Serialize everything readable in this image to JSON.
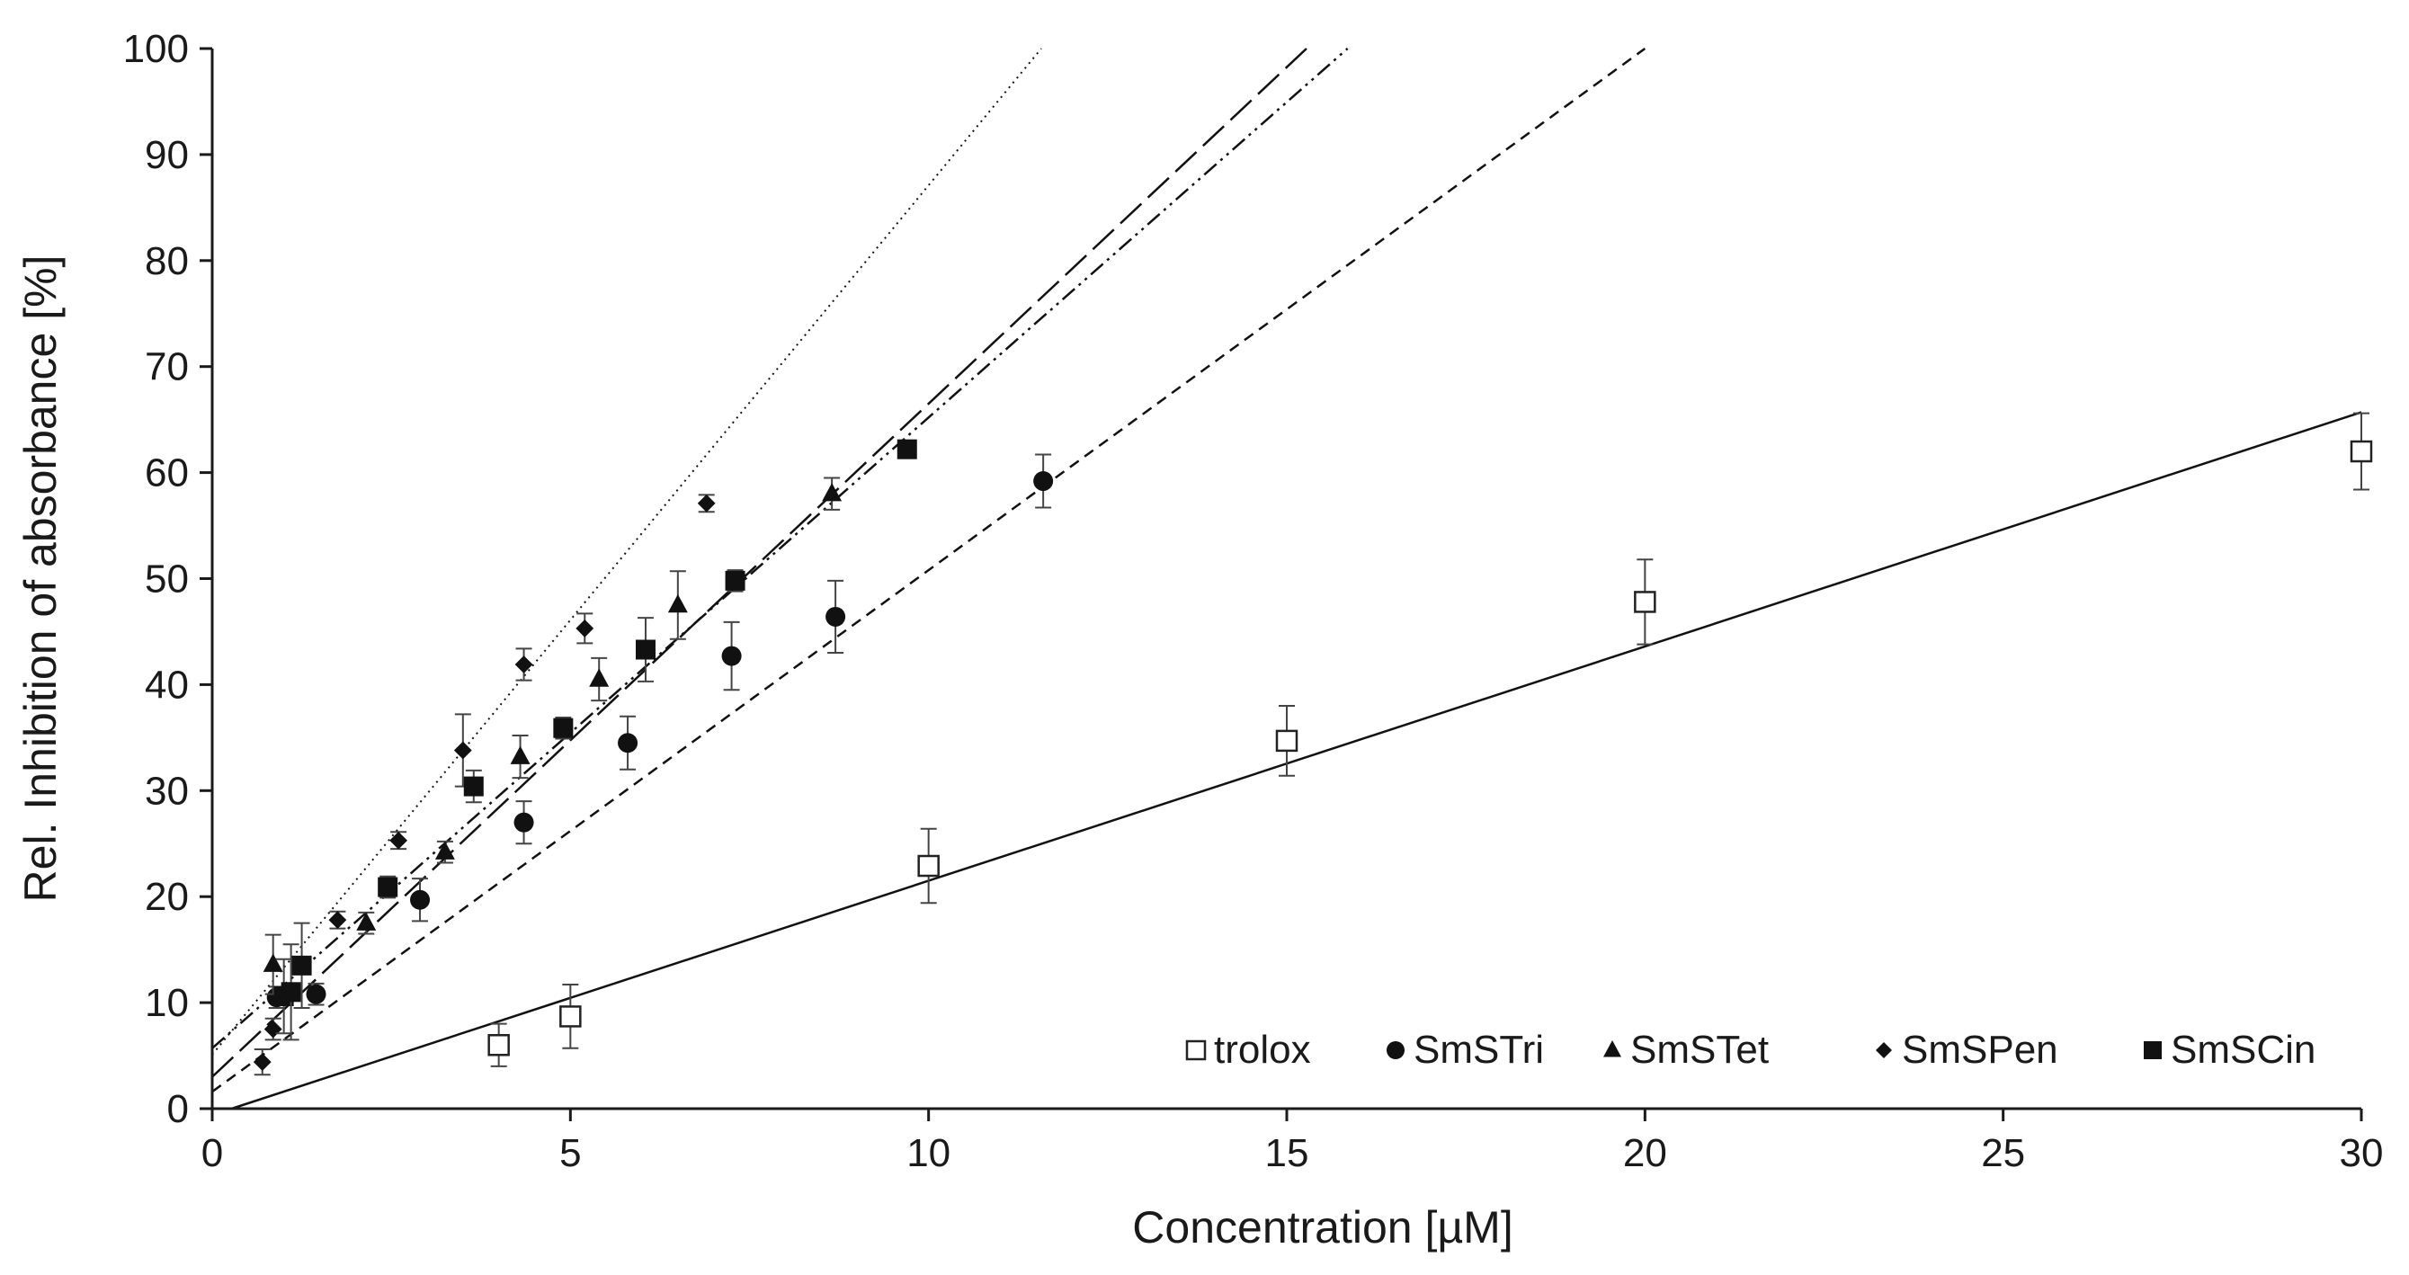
{
  "chart_data": {
    "type": "scatter",
    "title": "",
    "xlabel": "Concentration [µM]",
    "ylabel": "Rel. Inhibition of absorbance [%]",
    "xlim": [
      0,
      30
    ],
    "ylim": [
      0,
      100
    ],
    "xticks": [
      "0",
      "5",
      "10",
      "15",
      "20",
      "25",
      "30"
    ],
    "yticks": [
      "0",
      "10",
      "20",
      "30",
      "40",
      "50",
      "60",
      "70",
      "80",
      "90",
      "100"
    ],
    "grid": false,
    "legend_position": "bottom-right",
    "series": [
      {
        "name": "trolox",
        "marker": "open-square",
        "line_style": "solid",
        "color": "#111111",
        "points": [
          {
            "x": 4.0,
            "y": 6.0,
            "err": 2.0
          },
          {
            "x": 5.0,
            "y": 8.7,
            "err": 3.0
          },
          {
            "x": 10.0,
            "y": 22.9,
            "err": 3.5
          },
          {
            "x": 15.0,
            "y": 34.7,
            "err": 3.3
          },
          {
            "x": 20.0,
            "y": 47.8,
            "err": 4.0
          },
          {
            "x": 30.0,
            "y": 62.0,
            "err": 3.6
          }
        ],
        "trendline": {
          "slope": 2.21,
          "intercept": -0.6
        }
      },
      {
        "name": "SmSTri",
        "marker": "filled-circle",
        "line_style": "short-dash",
        "color": "#111111",
        "points": [
          {
            "x": 0.9,
            "y": 10.5,
            "err": 1.0
          },
          {
            "x": 1.45,
            "y": 10.8,
            "err": 1.0
          },
          {
            "x": 2.9,
            "y": 19.7,
            "err": 2.0
          },
          {
            "x": 4.35,
            "y": 27.0,
            "err": 2.0
          },
          {
            "x": 5.8,
            "y": 34.5,
            "err": 2.5
          },
          {
            "x": 7.25,
            "y": 42.7,
            "err": 3.2
          },
          {
            "x": 8.7,
            "y": 46.4,
            "err": 3.4
          },
          {
            "x": 11.6,
            "y": 59.2,
            "err": 2.5
          }
        ],
        "trendline": {
          "slope": 4.92,
          "intercept": 1.6
        }
      },
      {
        "name": "SmSTet",
        "marker": "filled-triangle",
        "line_style": "dash-dot-dot",
        "color": "#111111",
        "points": [
          {
            "x": 0.85,
            "y": 13.6,
            "err": 2.8
          },
          {
            "x": 2.15,
            "y": 17.5,
            "err": 1.0
          },
          {
            "x": 3.25,
            "y": 24.2,
            "err": 1.0
          },
          {
            "x": 4.3,
            "y": 33.2,
            "err": 2.0
          },
          {
            "x": 5.4,
            "y": 40.5,
            "err": 2.0
          },
          {
            "x": 6.5,
            "y": 47.5,
            "err": 3.2
          },
          {
            "x": 8.65,
            "y": 58.0,
            "err": 1.5
          }
        ],
        "trendline": {
          "slope": 5.95,
          "intercept": 5.7
        }
      },
      {
        "name": "SmSPen",
        "marker": "filled-diamond",
        "line_style": "dotted",
        "color": "#111111",
        "points": [
          {
            "x": 0.7,
            "y": 4.4,
            "err": 1.2
          },
          {
            "x": 0.85,
            "y": 7.5,
            "err": 1.0
          },
          {
            "x": 1.75,
            "y": 17.8,
            "err": 0.8
          },
          {
            "x": 2.6,
            "y": 25.3,
            "err": 0.8
          },
          {
            "x": 3.5,
            "y": 33.8,
            "err": 3.4
          },
          {
            "x": 4.35,
            "y": 41.9,
            "err": 1.5
          },
          {
            "x": 5.2,
            "y": 45.3,
            "err": 1.4
          },
          {
            "x": 6.9,
            "y": 57.1,
            "err": 0.8
          }
        ],
        "trendline": {
          "slope": 8.2,
          "intercept": 5.1
        }
      },
      {
        "name": "SmSCin",
        "marker": "filled-square",
        "line_style": "long-dash",
        "color": "#111111",
        "points": [
          {
            "x": 1.0,
            "y": 10.6,
            "err": 3.5
          },
          {
            "x": 1.1,
            "y": 11.0,
            "err": 4.5
          },
          {
            "x": 1.25,
            "y": 13.5,
            "err": 4.0
          },
          {
            "x": 2.45,
            "y": 20.9,
            "err": 1.0
          },
          {
            "x": 3.65,
            "y": 30.4,
            "err": 1.5
          },
          {
            "x": 4.9,
            "y": 35.9,
            "err": 1.0
          },
          {
            "x": 6.05,
            "y": 43.3,
            "err": 3.0
          },
          {
            "x": 7.3,
            "y": 49.8,
            "err": 1.0
          },
          {
            "x": 9.7,
            "y": 62.2,
            "err": 0.0
          }
        ],
        "trendline": {
          "slope": 6.35,
          "intercept": 3.0
        }
      }
    ]
  }
}
